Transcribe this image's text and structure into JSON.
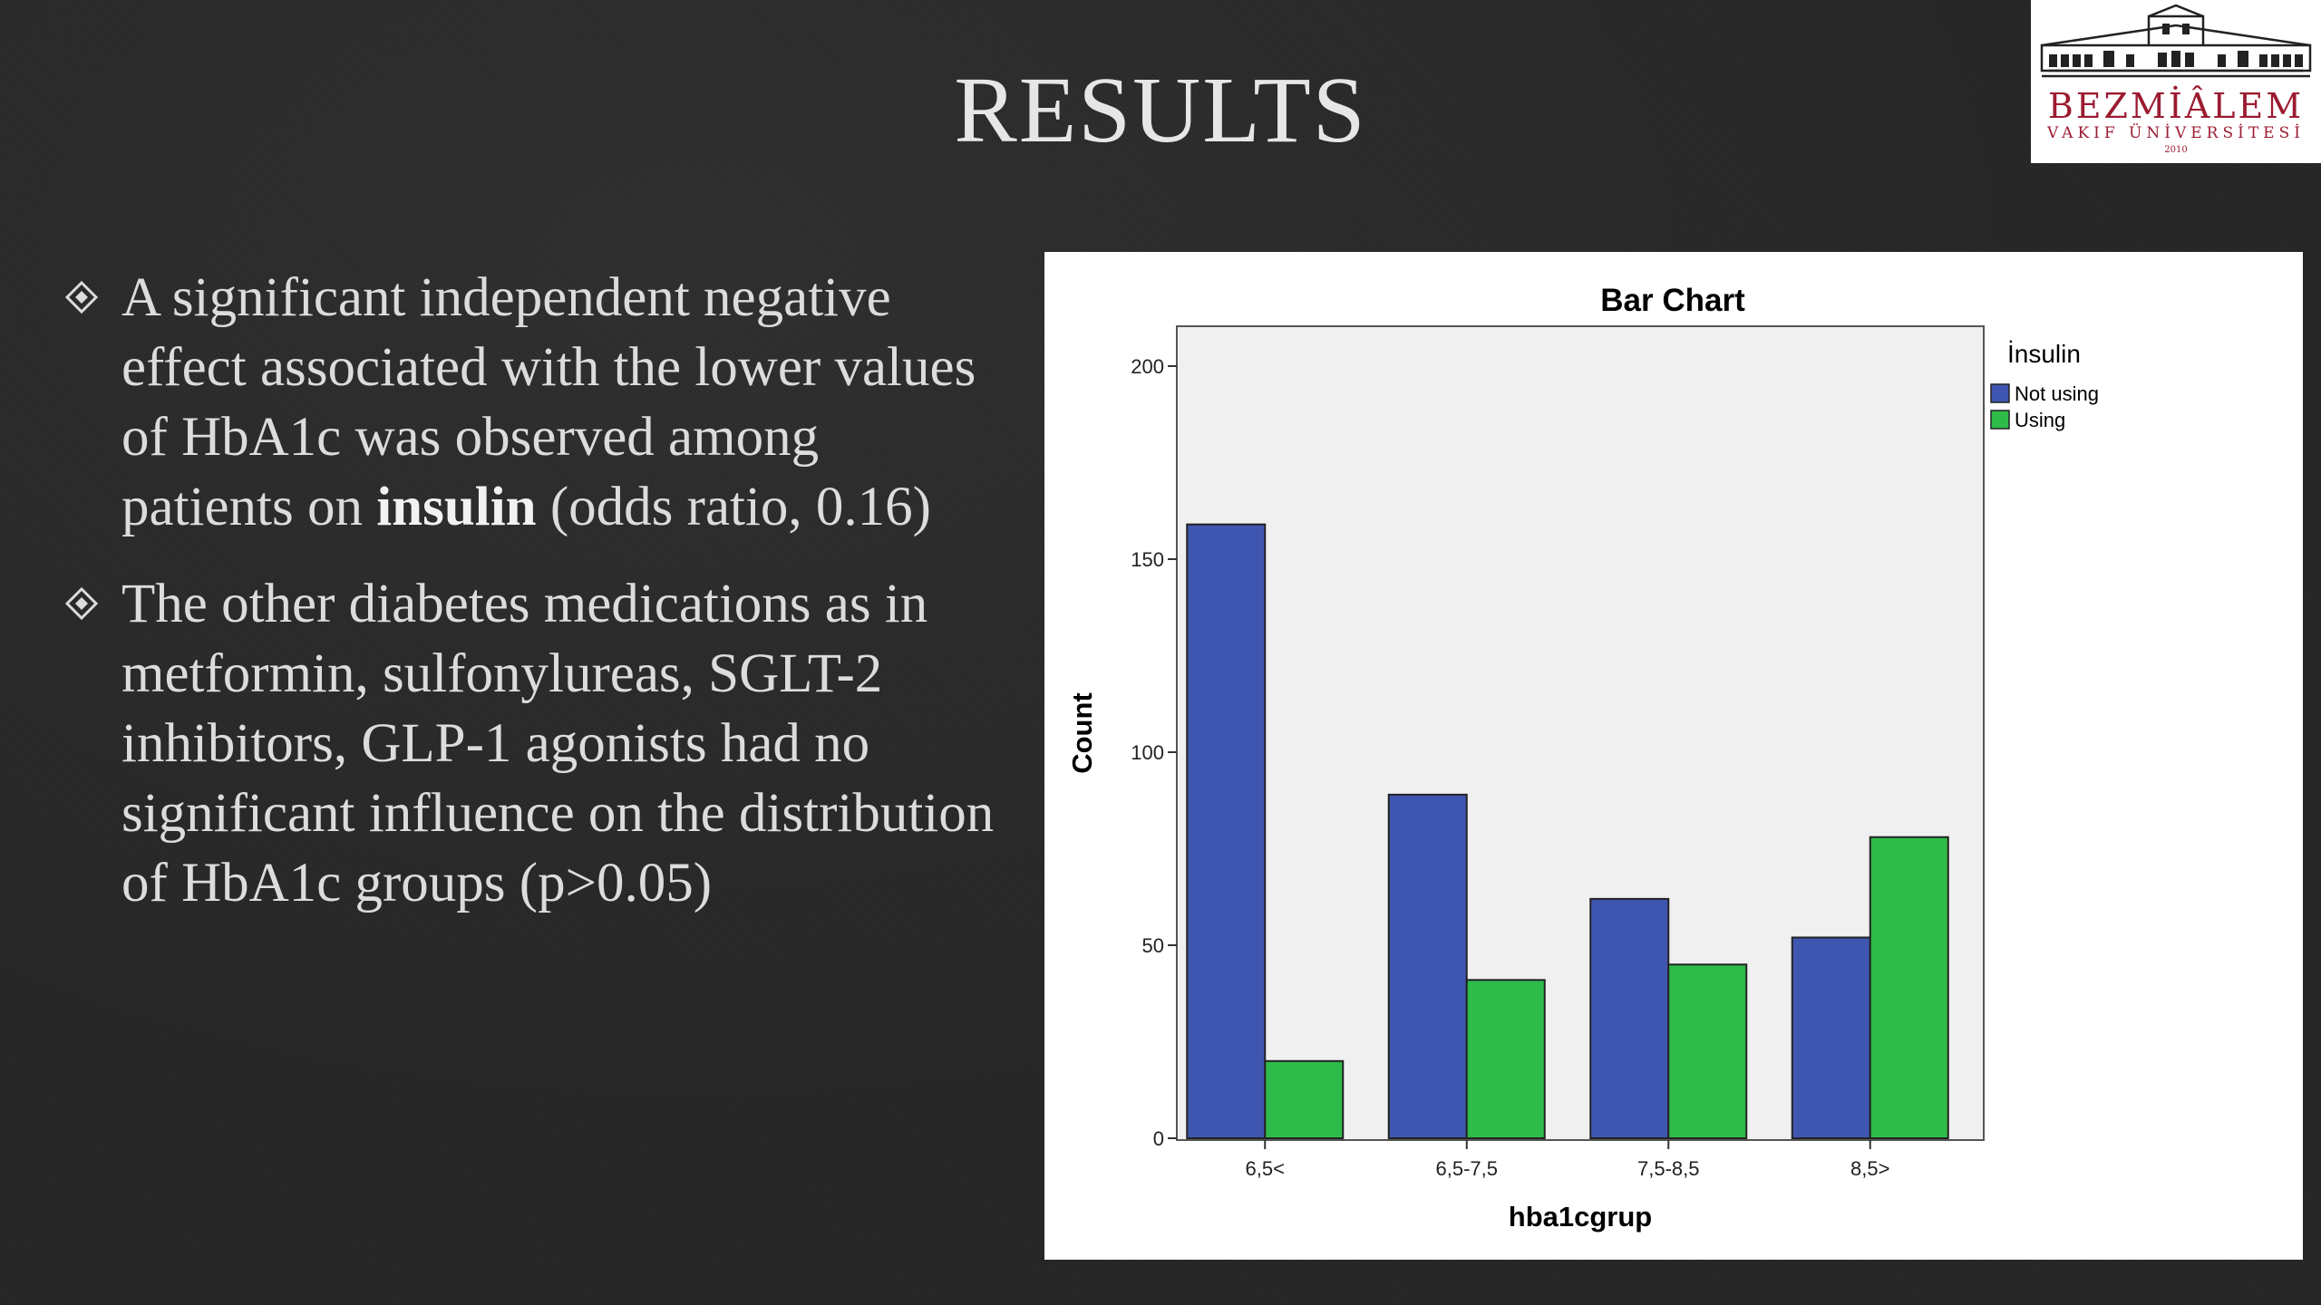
{
  "slide": {
    "title": "RESULTS",
    "bullets": [
      {
        "text_before": "A significant independent negative effect associated with the lower values of HbA1c was observed among patients on ",
        "bold": "insulin",
        "text_after": " (odds ratio, 0.16)"
      },
      {
        "text_before": "The other diabetes medications as in metformin, sulfonylureas, SGLT-2 inhibitors, GLP-1 agonists had no significant influence on the distribution of HbA1c groups (p>0.05)",
        "bold": "",
        "text_after": ""
      }
    ]
  },
  "logo": {
    "name": "BEZMİÂLEM",
    "subtitle": "VAKIF ÜNİVERSİTESİ",
    "year": "2010",
    "color": "#9b1b30"
  },
  "chart_data": {
    "type": "bar",
    "title": "Bar Chart",
    "xlabel": "hba1cgrup",
    "ylabel": "Count",
    "categories": [
      "6,5<",
      "6,5-7,5",
      "7,5-8,5",
      "8,5>"
    ],
    "series": [
      {
        "name": "Not using",
        "color": "#3f56b0",
        "values": [
          159,
          89,
          62,
          52
        ]
      },
      {
        "name": "Using",
        "color": "#2fbb4a",
        "values": [
          20,
          41,
          45,
          78
        ]
      }
    ],
    "ylim": [
      0,
      200
    ],
    "yticks": [
      0,
      50,
      100,
      150,
      200
    ],
    "legend_title": "İnsulin",
    "legend_position": "right",
    "grid": false,
    "plot_background": "#f0f0f0"
  }
}
